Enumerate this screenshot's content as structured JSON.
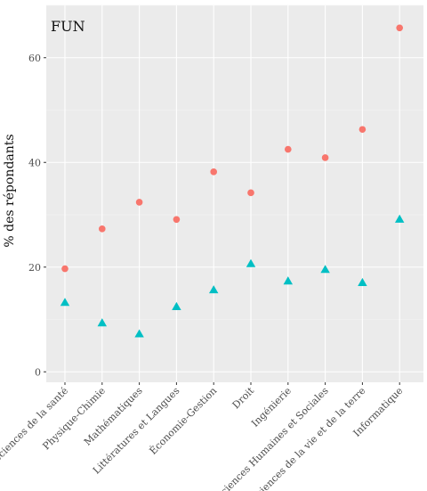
{
  "chart_data": {
    "type": "scatter",
    "panel_title": "FUN",
    "title": "",
    "xlabel": "",
    "ylabel": "% des répondants",
    "categories": [
      "Sciences de la santé",
      "Physique-Chimie",
      "Mathématiques",
      "Littératures et Langues",
      "Économie-Gestion",
      "Droit",
      "Ingénierie",
      "Sciences Humaines et Sociales",
      "Sciences de la vie et de la terre",
      "Informatique"
    ],
    "y_ticks": [
      0,
      20,
      40,
      60
    ],
    "ylim": [
      -2,
      70
    ],
    "grid": true,
    "legend": "none",
    "background": "#ebebeb",
    "series": [
      {
        "marker": "circle",
        "color": "#f8766d",
        "values": [
          19.7,
          27.3,
          32.4,
          29.1,
          38.2,
          34.2,
          42.5,
          40.9,
          46.3,
          65.7
        ]
      },
      {
        "marker": "triangle",
        "color": "#00bfc4",
        "values": [
          13.2,
          9.3,
          7.2,
          12.4,
          15.6,
          20.6,
          17.3,
          19.5,
          17.0,
          29.1
        ]
      }
    ]
  }
}
